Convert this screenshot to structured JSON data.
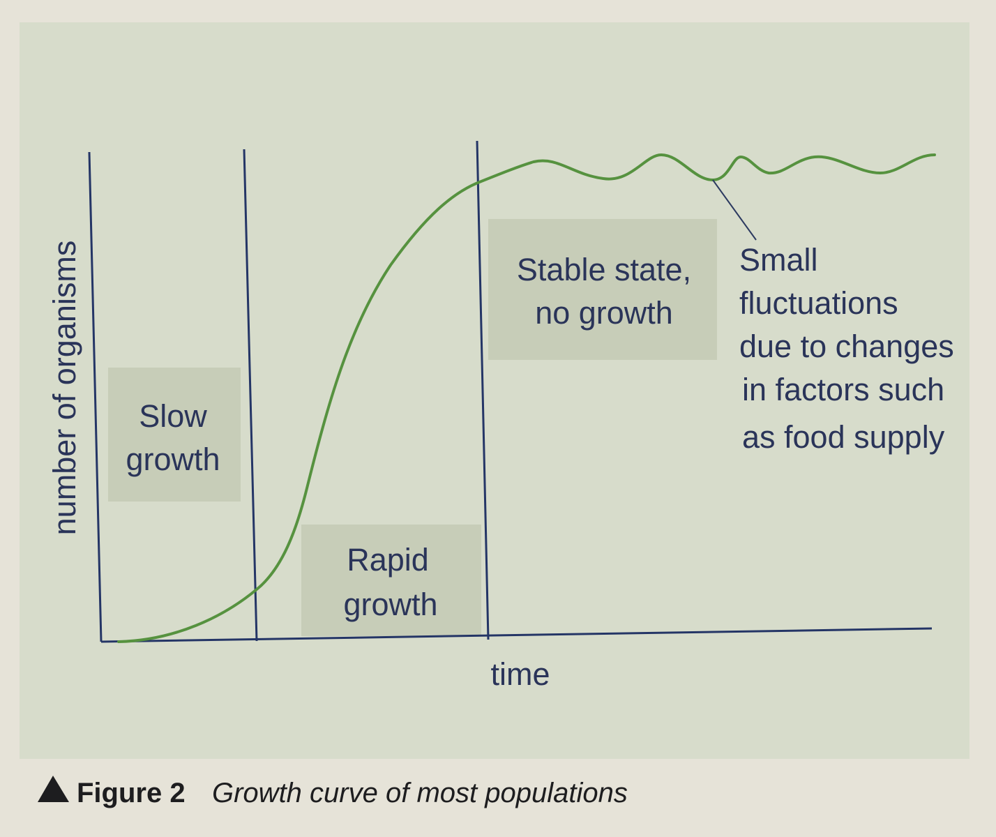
{
  "colors": {
    "page_background": "#e6e3d8",
    "figure_background": "#d7dccb",
    "label_box": "#c7cdb8",
    "curve": "#56923f",
    "axes": "#243566",
    "text": "#2a3459",
    "caption_text": "#1d1d1f"
  },
  "icons": {
    "caption_marker": "triangle-up-icon"
  },
  "caption": {
    "number": "Figure 2",
    "text": "Growth curve of most populations"
  },
  "chart_data": {
    "type": "line",
    "xlabel": "time",
    "ylabel": "number of organisms",
    "grid": false,
    "axis_ticks": false,
    "phases": [
      {
        "key": "slow",
        "lines": [
          "Slow",
          "growth"
        ]
      },
      {
        "key": "rapid",
        "lines": [
          "Rapid",
          "growth"
        ]
      },
      {
        "key": "stable",
        "lines": [
          "Stable state,",
          "no growth"
        ]
      }
    ],
    "annotation": {
      "lines": [
        "Small",
        "fluctuations",
        "due to changes",
        "in factors such",
        "as food supply"
      ]
    },
    "curve_shape": "sigmoid rising to a plateau with small fluctuations"
  }
}
